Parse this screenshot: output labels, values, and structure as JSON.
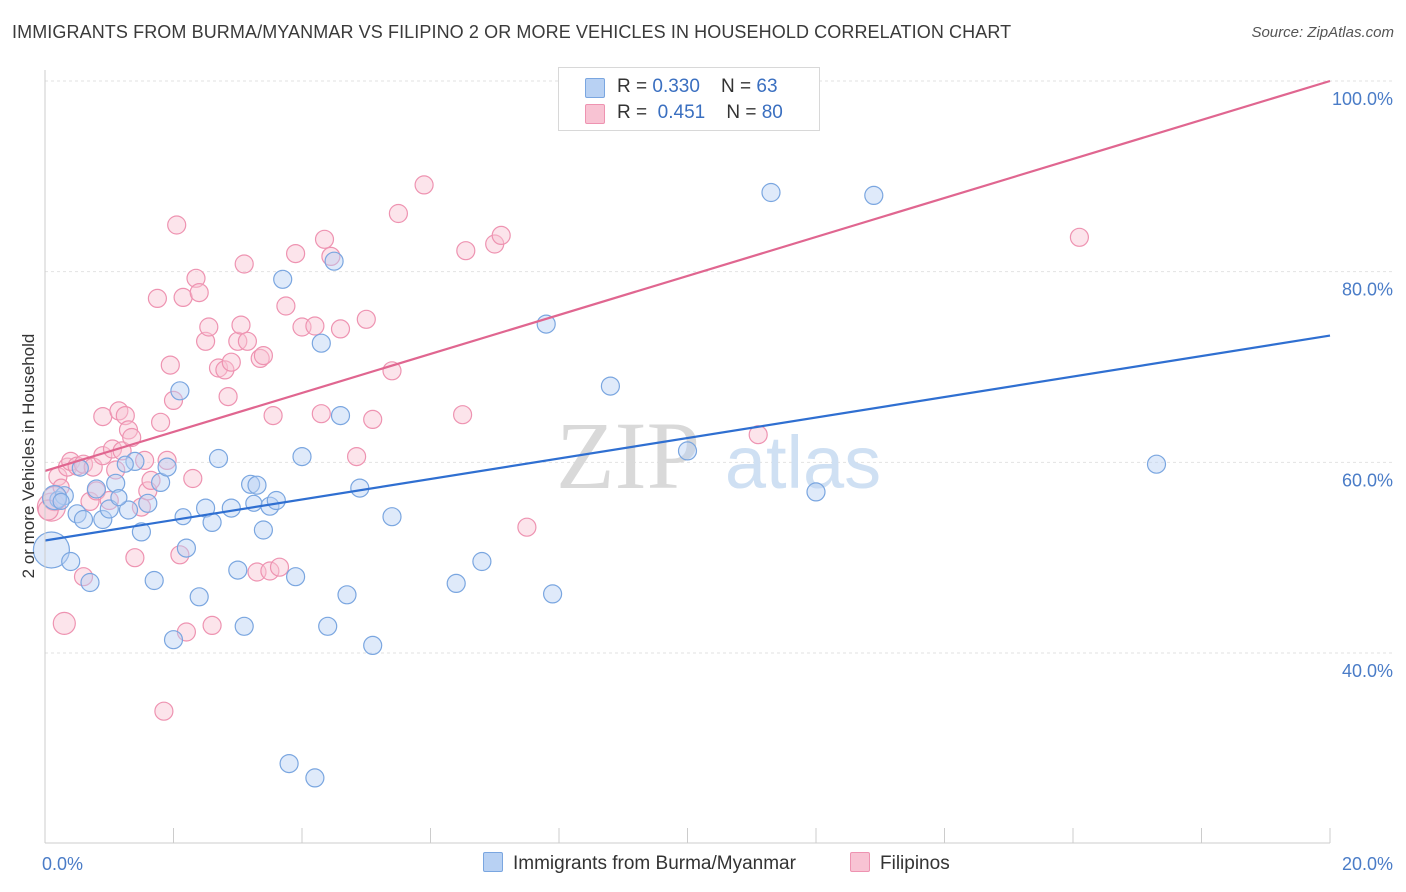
{
  "title": "IMMIGRANTS FROM BURMA/MYANMAR VS FILIPINO 2 OR MORE VEHICLES IN HOUSEHOLD CORRELATION CHART",
  "source": "Source: ZipAtlas.com",
  "watermark": {
    "zip": "ZIP",
    "atlas": "atlas"
  },
  "legend": {
    "rows": [
      {
        "r_label": "R = ",
        "r_value": "0.330",
        "n_label": "N = ",
        "n_value": "63"
      },
      {
        "r_label": "R = ",
        "r_value": "0.451",
        "n_label": "N = ",
        "n_value": "80"
      }
    ]
  },
  "colors": {
    "blue_fill": "#b8d1f3",
    "blue_stroke": "#7aa6e0",
    "blue_line": "#2f6fd1",
    "pink_fill": "#f8c3d3",
    "pink_stroke": "#ee93b1",
    "pink_line": "#e06690"
  },
  "chart_data": {
    "type": "scatter",
    "xlabel": "",
    "ylabel": "2 or more Vehicles in Household",
    "x_ticks": [
      "0.0%",
      "20.0%"
    ],
    "y_ticks": [
      "40.0%",
      "60.0%",
      "80.0%",
      "100.0%"
    ],
    "xlim": [
      0,
      20
    ],
    "ylim": [
      20,
      102
    ],
    "grid": true,
    "legend_position": "top-center",
    "series": [
      {
        "name": "Immigrants from Burma/Myanmar",
        "r": 0.33,
        "n": 63,
        "trend": {
          "x": [
            0,
            20
          ],
          "y": [
            51.8,
            73.3
          ]
        },
        "points": [
          [
            0.1,
            50.8,
            18
          ],
          [
            0.2,
            56.1,
            8
          ],
          [
            0.3,
            56.5,
            9
          ],
          [
            0.4,
            49.6,
            9
          ],
          [
            0.5,
            54.6,
            9
          ],
          [
            0.6,
            54.0,
            9
          ],
          [
            0.7,
            47.4,
            9
          ],
          [
            0.8,
            57.2,
            9
          ],
          [
            0.9,
            54.0,
            9
          ],
          [
            1.0,
            55.1,
            9
          ],
          [
            1.1,
            57.8,
            9
          ],
          [
            1.3,
            55.0,
            9
          ],
          [
            1.4,
            60.1,
            9
          ],
          [
            1.5,
            52.7,
            9
          ],
          [
            1.6,
            55.7,
            9
          ],
          [
            1.7,
            47.6,
            9
          ],
          [
            1.8,
            57.9,
            9
          ],
          [
            1.9,
            59.5,
            9
          ],
          [
            2.0,
            41.4,
            9
          ],
          [
            2.1,
            67.5,
            9
          ],
          [
            2.2,
            51.0,
            9
          ],
          [
            2.4,
            45.9,
            9
          ],
          [
            2.5,
            55.2,
            9
          ],
          [
            2.6,
            53.7,
            9
          ],
          [
            2.7,
            60.4,
            9
          ],
          [
            2.9,
            55.2,
            9
          ],
          [
            3.0,
            48.7,
            9
          ],
          [
            3.1,
            42.8,
            9
          ],
          [
            3.2,
            57.7,
            9
          ],
          [
            3.3,
            57.6,
            9
          ],
          [
            3.4,
            52.9,
            9
          ],
          [
            3.5,
            55.4,
            9
          ],
          [
            3.6,
            56.0,
            9
          ],
          [
            3.7,
            79.2,
            9
          ],
          [
            3.8,
            28.4,
            9
          ],
          [
            3.9,
            48.0,
            9
          ],
          [
            4.0,
            60.6,
            9
          ],
          [
            4.2,
            26.9,
            9
          ],
          [
            4.3,
            72.5,
            9
          ],
          [
            4.4,
            42.8,
            9
          ],
          [
            4.5,
            81.1,
            9
          ],
          [
            4.6,
            64.9,
            9
          ],
          [
            4.7,
            46.1,
            9
          ],
          [
            4.9,
            57.3,
            9
          ],
          [
            5.1,
            40.8,
            9
          ],
          [
            5.4,
            54.3,
            9
          ],
          [
            6.4,
            47.3,
            9
          ],
          [
            6.8,
            49.6,
            9
          ],
          [
            7.8,
            74.5,
            9
          ],
          [
            7.9,
            46.2,
            9
          ],
          [
            8.8,
            68.0,
            9
          ],
          [
            10.0,
            61.2,
            9
          ],
          [
            11.3,
            88.3,
            9
          ],
          [
            12.0,
            56.9,
            9
          ],
          [
            12.9,
            88.0,
            9
          ],
          [
            17.3,
            59.8,
            9
          ],
          [
            0.15,
            56.3,
            12
          ],
          [
            0.25,
            55.9,
            8
          ],
          [
            1.15,
            56.3,
            8
          ],
          [
            2.15,
            54.3,
            8
          ],
          [
            3.25,
            55.7,
            8
          ],
          [
            1.25,
            59.8,
            8
          ],
          [
            0.55,
            59.4,
            8
          ]
        ]
      },
      {
        "name": "Filipinos",
        "r": 0.451,
        "n": 80,
        "trend": {
          "x": [
            0,
            20
          ],
          "y": [
            59.1,
            100.0
          ]
        },
        "points": [
          [
            0.1,
            55.3,
            14
          ],
          [
            0.15,
            56.2,
            12
          ],
          [
            0.2,
            58.5,
            9
          ],
          [
            0.3,
            43.1,
            11
          ],
          [
            0.35,
            59.5,
            9
          ],
          [
            0.4,
            60.1,
            9
          ],
          [
            0.5,
            59.6,
            9
          ],
          [
            0.6,
            59.8,
            9
          ],
          [
            0.6,
            48.0,
            9
          ],
          [
            0.7,
            55.9,
            9
          ],
          [
            0.75,
            59.5,
            9
          ],
          [
            0.8,
            57.0,
            9
          ],
          [
            0.9,
            60.7,
            9
          ],
          [
            0.9,
            64.8,
            9
          ],
          [
            1.0,
            56.0,
            9
          ],
          [
            1.05,
            61.4,
            9
          ],
          [
            1.1,
            59.2,
            9
          ],
          [
            1.15,
            65.4,
            9
          ],
          [
            1.2,
            61.2,
            9
          ],
          [
            1.25,
            64.9,
            9
          ],
          [
            1.3,
            63.4,
            9
          ],
          [
            1.35,
            62.6,
            9
          ],
          [
            1.4,
            50.0,
            9
          ],
          [
            1.5,
            55.3,
            9
          ],
          [
            1.55,
            60.2,
            9
          ],
          [
            1.6,
            57.0,
            9
          ],
          [
            1.65,
            58.1,
            9
          ],
          [
            1.75,
            77.2,
            9
          ],
          [
            1.8,
            64.2,
            9
          ],
          [
            1.85,
            33.9,
            9
          ],
          [
            1.9,
            60.2,
            9
          ],
          [
            1.95,
            70.2,
            9
          ],
          [
            2.0,
            66.5,
            9
          ],
          [
            2.05,
            84.9,
            9
          ],
          [
            2.1,
            50.3,
            9
          ],
          [
            2.15,
            77.3,
            9
          ],
          [
            2.2,
            42.2,
            9
          ],
          [
            2.3,
            58.3,
            9
          ],
          [
            2.35,
            79.3,
            9
          ],
          [
            2.4,
            77.8,
            9
          ],
          [
            2.5,
            72.7,
            9
          ],
          [
            2.55,
            74.2,
            9
          ],
          [
            2.6,
            42.9,
            9
          ],
          [
            2.7,
            69.9,
            9
          ],
          [
            2.8,
            69.7,
            9
          ],
          [
            2.85,
            66.9,
            9
          ],
          [
            2.9,
            70.5,
            9
          ],
          [
            3.0,
            72.7,
            9
          ],
          [
            3.05,
            74.4,
            9
          ],
          [
            3.1,
            80.8,
            9
          ],
          [
            3.15,
            72.7,
            9
          ],
          [
            3.3,
            48.5,
            9
          ],
          [
            3.35,
            70.9,
            9
          ],
          [
            3.4,
            71.2,
            9
          ],
          [
            3.5,
            48.6,
            9
          ],
          [
            3.55,
            64.9,
            9
          ],
          [
            3.65,
            49.0,
            9
          ],
          [
            3.75,
            76.4,
            9
          ],
          [
            3.9,
            81.9,
            9
          ],
          [
            4.0,
            74.2,
            9
          ],
          [
            4.2,
            74.3,
            9
          ],
          [
            4.3,
            65.1,
            9
          ],
          [
            4.35,
            83.4,
            9
          ],
          [
            4.45,
            81.6,
            9
          ],
          [
            4.6,
            74.0,
            9
          ],
          [
            4.85,
            60.6,
            9
          ],
          [
            5.0,
            75.0,
            9
          ],
          [
            5.1,
            64.5,
            9
          ],
          [
            5.4,
            69.6,
            9
          ],
          [
            5.5,
            86.1,
            9
          ],
          [
            5.9,
            89.1,
            9
          ],
          [
            6.5,
            65.0,
            9
          ],
          [
            6.55,
            82.2,
            9
          ],
          [
            7.0,
            82.9,
            9
          ],
          [
            7.1,
            83.8,
            9
          ],
          [
            7.5,
            53.2,
            9
          ],
          [
            11.1,
            62.9,
            9
          ],
          [
            16.1,
            83.6,
            9
          ],
          [
            0.05,
            55.0,
            10
          ],
          [
            0.25,
            57.4,
            8
          ]
        ]
      }
    ]
  }
}
